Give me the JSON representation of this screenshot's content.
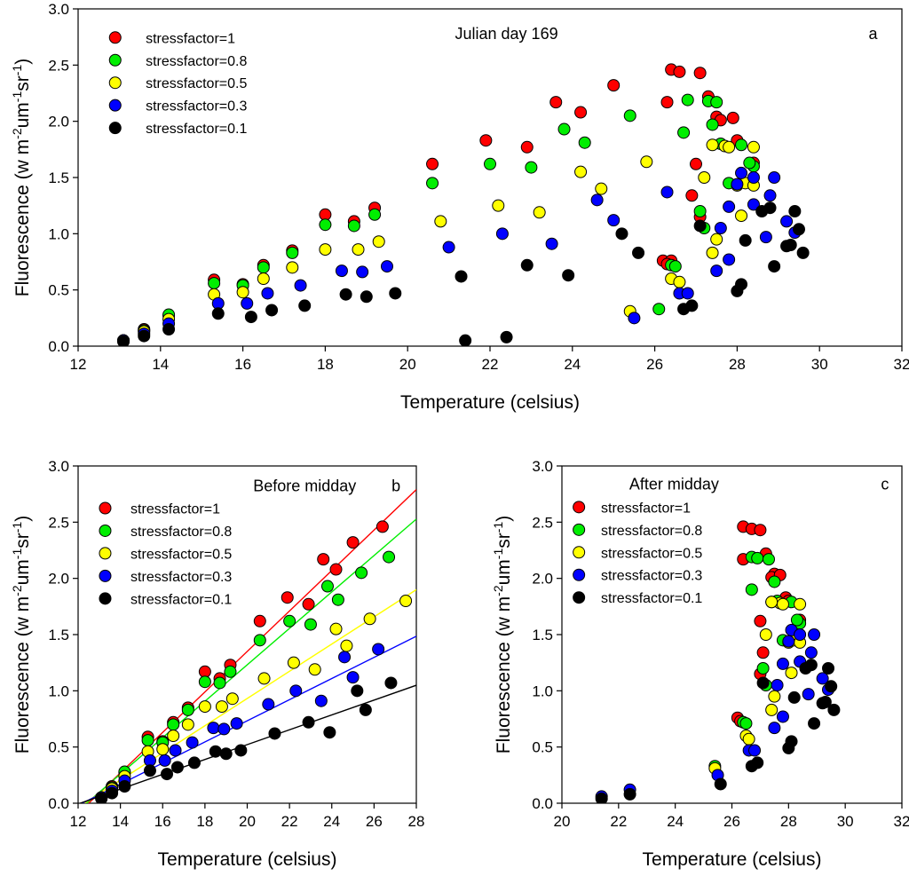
{
  "colors": {
    "stressfactor=1": "#ff0000",
    "stressfactor=0.8": "#00ee00",
    "stressfactor=0.5": "#ffff00",
    "stressfactor=0.3": "#0000ff",
    "stressfactor=0.1": "#000000"
  },
  "chart_data": [
    {
      "id": "a",
      "type": "scatter",
      "panel_label": "a",
      "title": "Julian day 169",
      "xlabel": "Temperature (celsius)",
      "ylabel": "Fluorescence (w m-2um-1sr-1)",
      "xlim": [
        12,
        32
      ],
      "ylim": [
        0,
        3
      ],
      "xticks": [
        12,
        14,
        16,
        18,
        20,
        22,
        24,
        26,
        28,
        30,
        32
      ],
      "yticks": [
        0.0,
        0.5,
        1.0,
        1.5,
        2.0,
        2.5,
        3.0
      ],
      "legend": [
        "stressfactor=1",
        "stressfactor=0.8",
        "stressfactor=0.5",
        "stressfactor=0.3",
        "stressfactor=0.1"
      ],
      "legend_position": "top-left",
      "series": [
        {
          "name": "stressfactor=1",
          "x": [
            13.1,
            13.6,
            14.2,
            15.3,
            16.0,
            16.5,
            17.2,
            18.0,
            18.7,
            19.2,
            20.6,
            21.9,
            22.9,
            23.6,
            24.2,
            25.0,
            26.3,
            26.4,
            26.6,
            27.1,
            27.3,
            27.5,
            27.6,
            27.9,
            28.0,
            26.2,
            27.1,
            26.9,
            27.0,
            26.4,
            26.3,
            28.4
          ],
          "y": [
            0.05,
            0.15,
            0.27,
            0.59,
            0.55,
            0.72,
            0.85,
            1.17,
            1.11,
            1.23,
            1.62,
            1.83,
            1.77,
            2.17,
            2.08,
            2.32,
            2.17,
            2.46,
            2.44,
            2.43,
            2.22,
            2.04,
            2.01,
            2.03,
            1.83,
            0.76,
            1.15,
            1.34,
            1.62,
            0.76,
            0.73,
            1.63
          ]
        },
        {
          "name": "stressfactor=0.8",
          "x": [
            13.1,
            13.6,
            14.2,
            15.3,
            16.0,
            16.5,
            17.2,
            18.0,
            18.7,
            19.2,
            20.6,
            22.0,
            23.0,
            23.8,
            24.3,
            25.4,
            26.7,
            26.8,
            27.3,
            27.5,
            27.6,
            28.1,
            28.4,
            27.4,
            27.2,
            27.1,
            26.4,
            26.5,
            28.3,
            27.8,
            26.1
          ],
          "y": [
            0.05,
            0.14,
            0.28,
            0.56,
            0.54,
            0.7,
            0.83,
            1.08,
            1.07,
            1.17,
            1.45,
            1.62,
            1.59,
            1.93,
            1.81,
            2.05,
            1.9,
            2.19,
            2.18,
            2.17,
            1.8,
            1.79,
            1.6,
            1.97,
            1.05,
            1.2,
            0.72,
            0.71,
            1.63,
            1.45,
            0.33
          ]
        },
        {
          "name": "stressfactor=0.5",
          "x": [
            13.1,
            13.6,
            14.2,
            15.3,
            16.0,
            16.5,
            17.2,
            18.0,
            18.8,
            19.3,
            20.8,
            22.2,
            23.2,
            24.2,
            24.7,
            25.4,
            25.8,
            26.4,
            26.6,
            27.2,
            27.4,
            27.7,
            27.8,
            28.0,
            28.1,
            28.4,
            28.2,
            27.5,
            27.4,
            28.4
          ],
          "y": [
            0.05,
            0.13,
            0.24,
            0.46,
            0.48,
            0.6,
            0.7,
            0.86,
            0.86,
            0.93,
            1.11,
            1.25,
            1.19,
            1.55,
            1.4,
            0.31,
            1.64,
            0.6,
            0.57,
            1.5,
            0.83,
            1.78,
            1.77,
            1.43,
            1.16,
            1.77,
            1.45,
            0.95,
            1.79,
            1.43
          ]
        },
        {
          "name": "stressfactor=0.3",
          "x": [
            13.1,
            13.6,
            14.2,
            15.4,
            16.1,
            16.6,
            17.4,
            18.4,
            18.9,
            19.5,
            21.0,
            22.3,
            23.5,
            24.6,
            25.0,
            25.5,
            26.3,
            26.6,
            26.8,
            27.5,
            27.8,
            28.1,
            28.4,
            28.7,
            28.8,
            28.9,
            29.2,
            29.4,
            28.4,
            27.8,
            28.0,
            27.6
          ],
          "y": [
            0.05,
            0.11,
            0.2,
            0.38,
            0.38,
            0.47,
            0.54,
            0.67,
            0.66,
            0.71,
            0.88,
            1.0,
            0.91,
            1.3,
            1.12,
            0.25,
            1.37,
            0.47,
            0.47,
            0.67,
            0.77,
            1.54,
            1.5,
            0.97,
            1.34,
            1.5,
            1.11,
            1.01,
            1.26,
            1.24,
            1.44,
            1.05
          ]
        },
        {
          "name": "stressfactor=0.1",
          "x": [
            13.1,
            13.6,
            14.2,
            15.4,
            16.2,
            16.7,
            17.5,
            18.5,
            19.0,
            19.7,
            21.3,
            22.9,
            23.9,
            25.2,
            25.6,
            26.7,
            26.9,
            27.1,
            28.0,
            28.1,
            28.2,
            28.6,
            28.8,
            28.9,
            29.2,
            29.3,
            29.5,
            29.6,
            29.4
          ],
          "y": [
            0.04,
            0.09,
            0.15,
            0.29,
            0.26,
            0.32,
            0.36,
            0.46,
            0.44,
            0.47,
            0.62,
            0.72,
            0.63,
            1.0,
            0.83,
            0.33,
            0.36,
            1.07,
            0.49,
            0.55,
            0.94,
            1.2,
            1.23,
            0.71,
            0.89,
            0.9,
            1.04,
            0.83,
            1.2
          ]
        }
      ],
      "bottom_points": {
        "x": [
          21.4,
          22.4
        ],
        "y": [
          0.05,
          0.08
        ]
      }
    },
    {
      "id": "b",
      "type": "scatter",
      "panel_label": "b",
      "title": "Before midday",
      "xlabel": "Temperature (celsius)",
      "ylabel": "Fluorescence (w m-2um-1sr-1)",
      "xlim": [
        12,
        28
      ],
      "ylim": [
        0,
        3
      ],
      "xticks": [
        12,
        14,
        16,
        18,
        20,
        22,
        24,
        26,
        28
      ],
      "yticks": [
        0.0,
        0.5,
        1.0,
        1.5,
        2.0,
        2.5,
        3.0
      ],
      "legend": [
        "stressfactor=1",
        "stressfactor=0.8",
        "stressfactor=0.5",
        "stressfactor=0.3",
        "stressfactor=0.1"
      ],
      "legend_position": "top-left",
      "series": [
        {
          "name": "stressfactor=1",
          "x": [
            13.1,
            13.6,
            14.2,
            15.3,
            16.0,
            16.5,
            17.2,
            18.0,
            18.7,
            19.2,
            20.6,
            21.9,
            22.9,
            23.6,
            24.2,
            25.0,
            26.4
          ],
          "y": [
            0.05,
            0.15,
            0.27,
            0.59,
            0.55,
            0.72,
            0.85,
            1.17,
            1.11,
            1.23,
            1.62,
            1.83,
            1.77,
            2.17,
            2.08,
            2.32,
            2.46
          ],
          "fit": [
            12.5,
            0.18
          ]
        },
        {
          "name": "stressfactor=0.8",
          "x": [
            13.1,
            13.6,
            14.2,
            15.3,
            16.0,
            16.5,
            17.2,
            18.0,
            18.7,
            19.2,
            20.6,
            22.0,
            23.0,
            23.8,
            24.3,
            25.4,
            26.7
          ],
          "y": [
            0.05,
            0.14,
            0.28,
            0.56,
            0.54,
            0.7,
            0.83,
            1.08,
            1.07,
            1.17,
            1.45,
            1.62,
            1.59,
            1.93,
            1.81,
            2.05,
            2.19
          ],
          "fit": [
            12.4,
            0.162
          ]
        },
        {
          "name": "stressfactor=0.5",
          "x": [
            13.1,
            13.6,
            14.2,
            15.3,
            16.0,
            16.5,
            17.2,
            18.0,
            18.8,
            19.3,
            20.8,
            22.2,
            23.2,
            24.2,
            24.7,
            25.8,
            27.5
          ],
          "y": [
            0.05,
            0.13,
            0.24,
            0.46,
            0.48,
            0.6,
            0.7,
            0.86,
            0.86,
            0.93,
            1.11,
            1.25,
            1.19,
            1.55,
            1.4,
            1.64,
            1.8
          ],
          "fit": [
            12.3,
            0.121
          ]
        },
        {
          "name": "stressfactor=0.3",
          "x": [
            13.1,
            13.6,
            14.2,
            15.4,
            16.1,
            16.6,
            17.4,
            18.4,
            18.9,
            19.5,
            21.0,
            22.3,
            23.5,
            24.6,
            25.0,
            26.2
          ],
          "y": [
            0.05,
            0.11,
            0.2,
            0.38,
            0.38,
            0.47,
            0.54,
            0.67,
            0.66,
            0.71,
            0.88,
            1.0,
            0.91,
            1.3,
            1.12,
            1.37
          ],
          "fit": [
            12.2,
            0.094
          ]
        },
        {
          "name": "stressfactor=0.1",
          "x": [
            13.1,
            13.6,
            14.2,
            15.4,
            16.2,
            16.7,
            17.5,
            18.5,
            19.0,
            19.7,
            21.3,
            22.9,
            23.9,
            25.2,
            25.6,
            26.8
          ],
          "y": [
            0.04,
            0.09,
            0.15,
            0.29,
            0.26,
            0.32,
            0.36,
            0.46,
            0.44,
            0.47,
            0.62,
            0.72,
            0.63,
            1.0,
            0.83,
            1.07
          ],
          "fit": [
            12.1,
            0.066
          ]
        }
      ]
    },
    {
      "id": "c",
      "type": "scatter",
      "panel_label": "c",
      "title": "After midday",
      "xlabel": "Temperature (celsius)",
      "ylabel": "Fluorescence (w m-2um-1sr-1)",
      "xlim": [
        20,
        32
      ],
      "ylim": [
        0,
        3
      ],
      "xticks": [
        20,
        22,
        24,
        26,
        28,
        30,
        32
      ],
      "yticks": [
        0.0,
        0.5,
        1.0,
        1.5,
        2.0,
        2.5,
        3.0
      ],
      "legend": [
        "stressfactor=1",
        "stressfactor=0.8",
        "stressfactor=0.5",
        "stressfactor=0.3",
        "stressfactor=0.1"
      ],
      "legend_position": "top-left",
      "series": [
        {
          "name": "stressfactor=1",
          "x": [
            26.4,
            26.4,
            26.7,
            27.0,
            27.2,
            27.5,
            27.4,
            27.7,
            27.9,
            28.0,
            26.2,
            27.0,
            27.1,
            27.0,
            26.3,
            28.4
          ],
          "y": [
            2.46,
            2.17,
            2.44,
            2.43,
            2.22,
            2.04,
            2.01,
            2.03,
            1.83,
            1.8,
            0.76,
            1.15,
            1.34,
            1.62,
            0.73,
            1.63
          ]
        },
        {
          "name": "stressfactor=0.8",
          "x": [
            26.7,
            26.9,
            27.3,
            27.5,
            27.6,
            28.1,
            28.4,
            27.4,
            27.2,
            27.1,
            26.4,
            26.5,
            28.3,
            27.8,
            25.4,
            26.7
          ],
          "y": [
            2.19,
            2.18,
            2.17,
            1.97,
            1.8,
            1.79,
            1.6,
            1.79,
            1.05,
            1.2,
            0.72,
            0.71,
            1.63,
            1.45,
            0.33,
            1.9
          ]
        },
        {
          "name": "stressfactor=0.5",
          "x": [
            26.5,
            26.6,
            27.2,
            27.4,
            27.7,
            27.8,
            28.0,
            28.1,
            28.4,
            28.2,
            27.5,
            27.4,
            28.4,
            25.4
          ],
          "y": [
            0.6,
            0.57,
            1.5,
            0.83,
            1.78,
            1.77,
            1.43,
            1.16,
            1.77,
            1.45,
            0.95,
            1.79,
            1.43,
            0.31
          ]
        },
        {
          "name": "stressfactor=0.3",
          "x": [
            26.6,
            26.8,
            27.5,
            27.8,
            28.1,
            28.4,
            28.7,
            28.8,
            28.9,
            29.2,
            29.4,
            28.4,
            27.8,
            28.0,
            27.6,
            25.5,
            21.4,
            22.4
          ],
          "y": [
            0.47,
            0.47,
            0.67,
            0.77,
            1.54,
            1.5,
            0.97,
            1.34,
            1.5,
            1.11,
            1.01,
            1.26,
            1.24,
            1.44,
            1.05,
            0.25,
            0.06,
            0.12
          ]
        },
        {
          "name": "stressfactor=0.1",
          "x": [
            26.7,
            26.9,
            27.1,
            28.0,
            28.1,
            28.2,
            28.6,
            28.8,
            28.9,
            29.2,
            29.3,
            29.5,
            29.6,
            29.4,
            25.6,
            21.4,
            22.4
          ],
          "y": [
            0.33,
            0.36,
            1.07,
            0.49,
            0.55,
            0.94,
            1.2,
            1.23,
            0.71,
            0.89,
            0.9,
            1.04,
            0.83,
            1.2,
            0.17,
            0.04,
            0.08
          ]
        }
      ]
    }
  ]
}
